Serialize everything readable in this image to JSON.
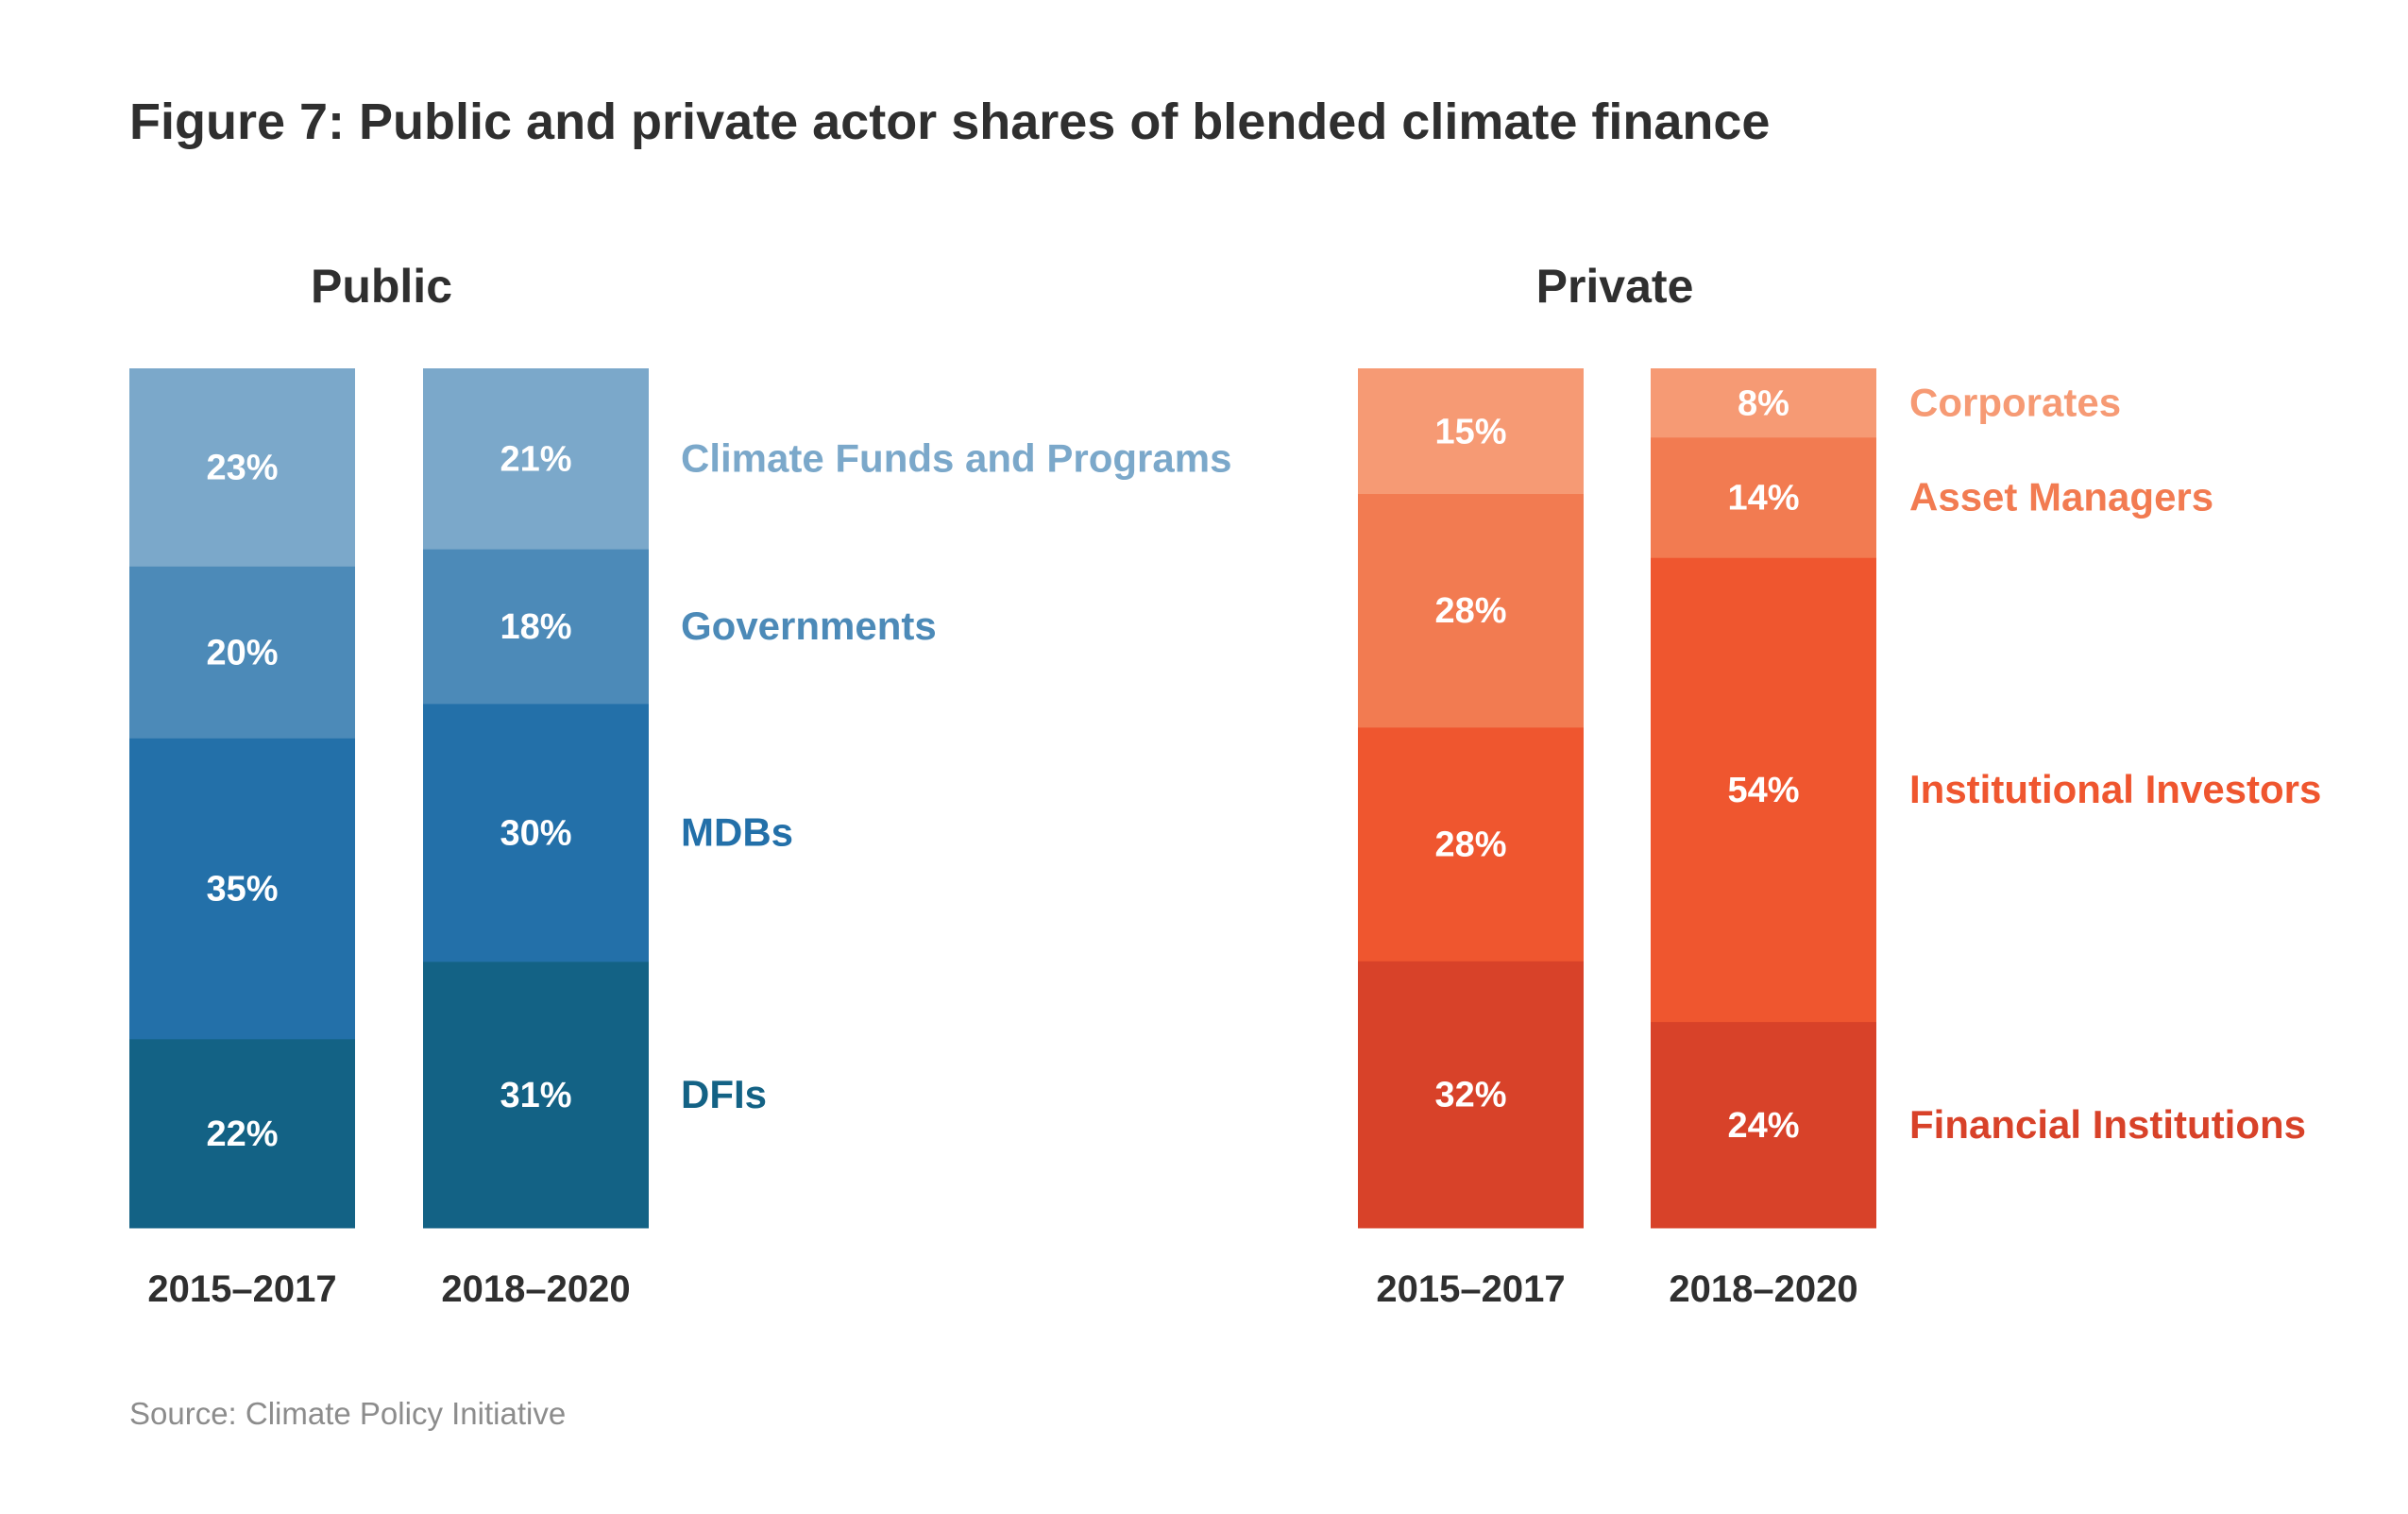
{
  "title": "Figure 7: Public and private actor shares of blended climate finance",
  "source": "Source: Climate Policy Initiative",
  "chart_data": [
    {
      "type": "bar",
      "stacked": true,
      "percent_stacked": true,
      "title": "Public",
      "categories": [
        "2015–2017",
        "2018–2020"
      ],
      "series": [
        {
          "name": "DFIs",
          "values": [
            22,
            31
          ],
          "color": "#136285"
        },
        {
          "name": "MDBs",
          "values": [
            35,
            30
          ],
          "color": "#2370a9"
        },
        {
          "name": "Governments",
          "values": [
            20,
            18
          ],
          "color": "#4c8ab8"
        },
        {
          "name": "Climate Funds and Programs",
          "values": [
            23,
            21
          ],
          "color": "#7ba8ca"
        }
      ],
      "value_labels": [
        [
          "22%",
          "31%"
        ],
        [
          "35%",
          "30%"
        ],
        [
          "20%",
          "18%"
        ],
        [
          "23%",
          "21%"
        ]
      ],
      "legend_placement": "right",
      "grid": false
    },
    {
      "type": "bar",
      "stacked": true,
      "percent_stacked": true,
      "title": "Private",
      "categories": [
        "2015–2017",
        "2018–2020"
      ],
      "series": [
        {
          "name": "Financial Institutions",
          "values": [
            32,
            24
          ],
          "color": "#d84229"
        },
        {
          "name": "Institutional Investors",
          "values": [
            28,
            54
          ],
          "color": "#ef562f"
        },
        {
          "name": "Asset Managers",
          "values": [
            28,
            14
          ],
          "color": "#f27b51"
        },
        {
          "name": "Corporates",
          "values": [
            15,
            8
          ],
          "color": "#f69a74"
        }
      ],
      "value_labels": [
        [
          "32%",
          "24%"
        ],
        [
          "28%",
          "54%"
        ],
        [
          "28%",
          "14%"
        ],
        [
          "15%",
          "8%"
        ]
      ],
      "legend_placement": "right",
      "grid": false
    }
  ]
}
